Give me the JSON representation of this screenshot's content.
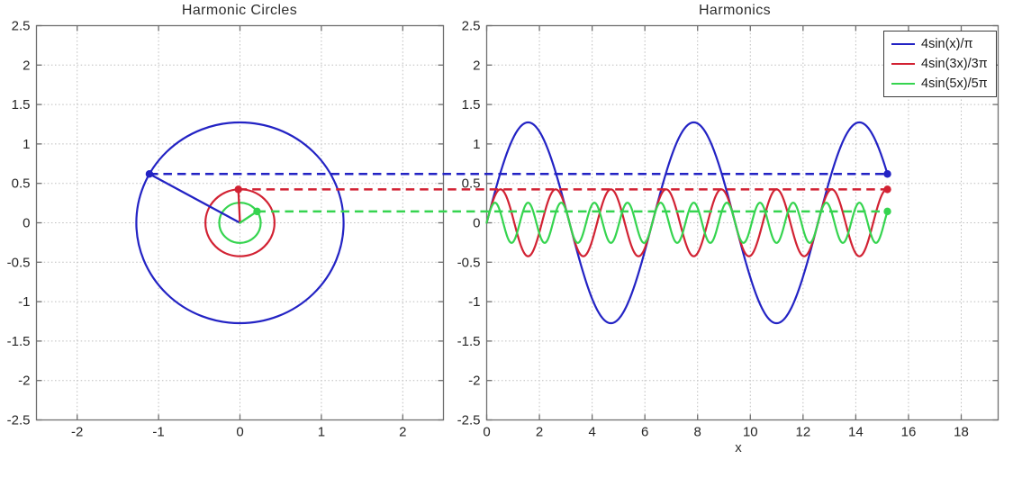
{
  "figure": {
    "background": "#ffffff",
    "text_color": "#2e2e2e",
    "grid_color": "#bdbdbd",
    "axis_color": "#6f6f6f"
  },
  "chart_data": [
    {
      "type": "line",
      "name": "harmonic-circles",
      "title": "Harmonic Circles",
      "xlabel": "",
      "ylabel": "",
      "xlim": [
        -2.5,
        2.5
      ],
      "ylim": [
        -2.5,
        2.5
      ],
      "xticks": [
        -2,
        -1,
        0,
        1,
        2
      ],
      "yticks": [
        2.5,
        2,
        1.5,
        1,
        0.5,
        0,
        -0.5,
        -1,
        -1.5,
        -2,
        -2.5
      ],
      "grid": true,
      "circles": [
        {
          "label": "4sin(x)/π",
          "harmonic": 1,
          "center": [
            0,
            0
          ],
          "radius": 1.2732,
          "color": "#2323c4",
          "point_angle_rad": 2.6336,
          "point": [
            -1.112,
            0.619
          ]
        },
        {
          "label": "4sin(3x)/3π",
          "harmonic": 3,
          "center": [
            0,
            0
          ],
          "radius": 0.4244,
          "color": "#d22233",
          "point_angle_rad": 1.6177,
          "point": [
            -0.02,
            0.424
          ]
        },
        {
          "label": "4sin(5x)/5π",
          "harmonic": 5,
          "center": [
            0,
            0
          ],
          "radius": 0.2546,
          "color": "#35d44f",
          "point_angle_rad": 0.6018,
          "point": [
            0.21,
            0.144
          ]
        }
      ]
    },
    {
      "type": "line",
      "name": "harmonics",
      "title": "Harmonics",
      "xlabel": "x",
      "ylabel": "",
      "xlim": [
        0,
        19.4
      ],
      "ylim": [
        -2.5,
        2.5
      ],
      "xticks": [
        0,
        2,
        4,
        6,
        8,
        10,
        12,
        14,
        16,
        18
      ],
      "yticks": [
        2.5,
        2,
        1.5,
        1,
        0.5,
        0,
        -0.5,
        -1,
        -1.5,
        -2,
        -2.5
      ],
      "grid": true,
      "legend_position": "top-right",
      "x_start": 0,
      "x_end": 15.2,
      "series": [
        {
          "name": "4sin(x)/π",
          "frequency": 1,
          "amplitude": 1.2732,
          "color": "#2323c4",
          "end_point": [
            15.2,
            0.619
          ]
        },
        {
          "name": "4sin(3x)/3π",
          "frequency": 3,
          "amplitude": 0.4244,
          "color": "#d22233",
          "end_point": [
            15.2,
            0.424
          ]
        },
        {
          "name": "4sin(5x)/5π",
          "frequency": 5,
          "amplitude": 0.2546,
          "color": "#35d44f",
          "end_point": [
            15.2,
            0.144
          ]
        }
      ],
      "connectors": [
        {
          "y": 0.619,
          "color": "#2323c4",
          "style": "dashed"
        },
        {
          "y": 0.424,
          "color": "#d22233",
          "style": "dashed"
        },
        {
          "y": 0.144,
          "color": "#35d44f",
          "style": "dashed"
        }
      ]
    }
  ],
  "legend": {
    "entries": [
      "4sin(x)/π",
      "4sin(3x)/3π",
      "4sin(5x)/5π"
    ]
  }
}
